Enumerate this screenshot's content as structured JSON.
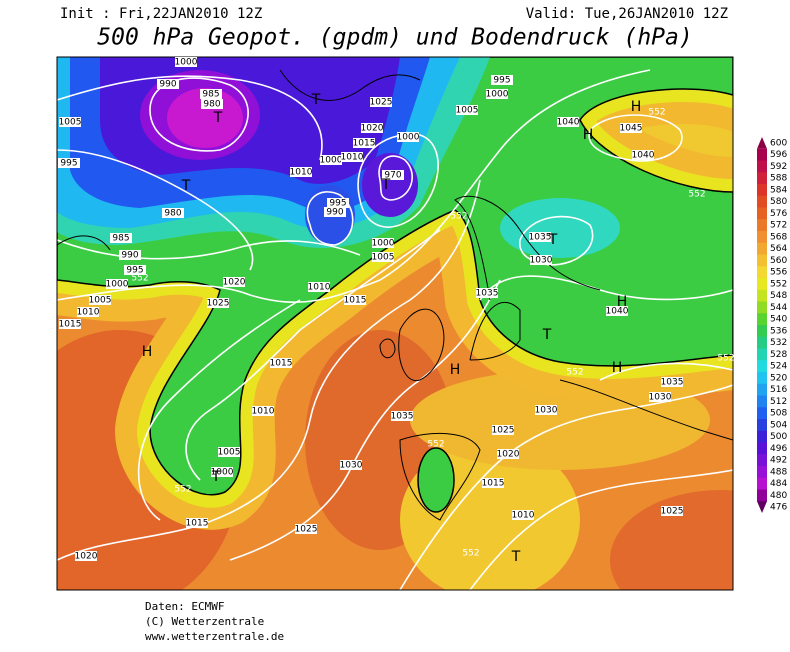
{
  "header": {
    "init": "Init : Fri,22JAN2010  12Z",
    "valid": "Valid: Tue,26JAN2010  12Z",
    "title": "500 hPa Geopot. (gpdm) und Bodendruck (hPa)"
  },
  "footer": [
    "Daten: ECMWF",
    "(C) Wetterzentrale",
    "www.wetterzentrale.de"
  ],
  "colorbar": {
    "levels": [
      600,
      596,
      592,
      588,
      584,
      580,
      576,
      572,
      568,
      564,
      560,
      556,
      552,
      548,
      544,
      540,
      536,
      532,
      528,
      524,
      520,
      516,
      512,
      508,
      504,
      500,
      496,
      492,
      488,
      484,
      480,
      476
    ],
    "colors": [
      "#8c0044",
      "#a8004c",
      "#c0104a",
      "#d0203a",
      "#dc3428",
      "#e24c22",
      "#e66222",
      "#ea7a28",
      "#f09030",
      "#f2a830",
      "#f2c030",
      "#f2d830",
      "#e8e820",
      "#c4e420",
      "#90dc24",
      "#58d430",
      "#34cc50",
      "#24cc84",
      "#20d4b4",
      "#20dce0",
      "#20c4f0",
      "#20a4f0",
      "#2084f0",
      "#2060f0",
      "#2840e0",
      "#3c20d8",
      "#5a10d8",
      "#7810d8",
      "#9810d8",
      "#b810d0",
      "#900098",
      "#600060"
    ]
  },
  "map": {
    "isobar_labels": [
      1005,
      995,
      980,
      985,
      990,
      995,
      1000,
      1005,
      1010,
      1015,
      1020,
      1025,
      1010,
      1015,
      1000,
      1005,
      995,
      990,
      1000,
      1010,
      1010,
      1015,
      1020,
      1025,
      1000,
      970,
      995,
      1000,
      1005,
      1040,
      1045,
      1040,
      1035,
      1030,
      1035,
      1040,
      1015,
      1010,
      1005,
      1000,
      1035,
      1030,
      1025,
      1015,
      1020,
      1030,
      1025,
      1020,
      1015,
      1010,
      1035,
      1030,
      1025,
      985,
      980,
      990,
      1000
    ],
    "height_labels": [
      552,
      552,
      552,
      552,
      552,
      552,
      552,
      552,
      552
    ],
    "centers": [
      "H",
      "H",
      "H",
      "H",
      "H",
      "H",
      "T",
      "T",
      "T",
      "T",
      "T",
      "T",
      "T",
      "T"
    ]
  }
}
